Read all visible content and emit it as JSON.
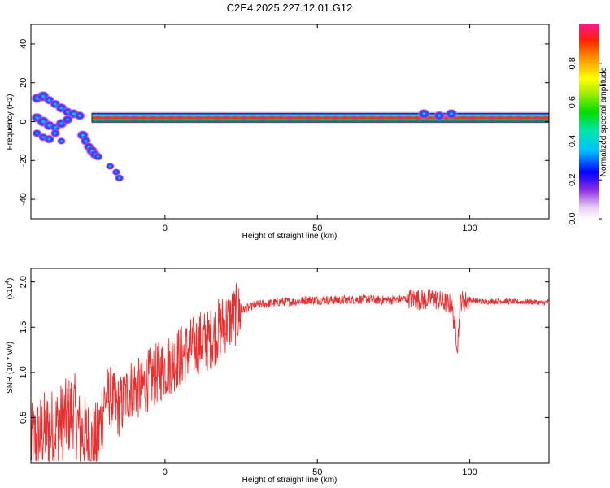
{
  "title": "C2E4.2025.227.12.01.G12",
  "colors": {
    "snr_line": "#e83030",
    "axis": "#000000"
  },
  "colorbar": {
    "label": "Normalized spectral amplitude",
    "ticks": [
      "0.0",
      "0.2",
      "0.4",
      "0.6",
      "0.8"
    ],
    "tick_values": [
      0.0,
      0.2,
      0.4,
      0.6,
      0.8
    ],
    "range": [
      0,
      1
    ]
  },
  "chart_data": [
    {
      "type": "heatmap",
      "id": "spectrogram",
      "xlabel": "Height of straight line (km)",
      "ylabel": "Frequency (Hz)",
      "xlim": [
        -44,
        126
      ],
      "ylim": [
        -50,
        50
      ],
      "xticks": [
        "0",
        "50",
        "100"
      ],
      "xtick_values": [
        0,
        50,
        100
      ],
      "yticks": [
        "40",
        "20",
        "0",
        "-20",
        "-40"
      ],
      "ytick_values": [
        40,
        20,
        0,
        -20,
        -40
      ],
      "band": {
        "frequency": 2,
        "x_start": -24,
        "x_end": 126
      },
      "blobs": [
        {
          "x": -42,
          "y": 12,
          "amp": 0.6
        },
        {
          "x": -40,
          "y": 13,
          "amp": 0.7
        },
        {
          "x": -38,
          "y": 11,
          "amp": 0.5
        },
        {
          "x": -36,
          "y": 9,
          "amp": 0.5
        },
        {
          "x": -34,
          "y": 7,
          "amp": 0.6
        },
        {
          "x": -32,
          "y": 5,
          "amp": 0.5
        },
        {
          "x": -30,
          "y": 4,
          "amp": 0.6
        },
        {
          "x": -28,
          "y": 3,
          "amp": 0.5
        },
        {
          "x": -42,
          "y": 2,
          "amp": 0.6
        },
        {
          "x": -40,
          "y": 0,
          "amp": 0.7
        },
        {
          "x": -38,
          "y": -2,
          "amp": 0.6
        },
        {
          "x": -36,
          "y": -3,
          "amp": 0.5
        },
        {
          "x": -34,
          "y": -1,
          "amp": 0.6
        },
        {
          "x": -32,
          "y": 1,
          "amp": 0.5
        },
        {
          "x": -42,
          "y": -6,
          "amp": 0.4
        },
        {
          "x": -40,
          "y": -8,
          "amp": 0.4
        },
        {
          "x": -38,
          "y": -9,
          "amp": 0.5
        },
        {
          "x": -36,
          "y": -6,
          "amp": 0.4
        },
        {
          "x": -34,
          "y": -10,
          "amp": 0.3
        },
        {
          "x": -27,
          "y": -7,
          "amp": 0.6
        },
        {
          "x": -26,
          "y": -10,
          "amp": 0.5
        },
        {
          "x": -25,
          "y": -13,
          "amp": 0.5
        },
        {
          "x": -24,
          "y": -15,
          "amp": 0.6
        },
        {
          "x": -23,
          "y": -17,
          "amp": 0.5
        },
        {
          "x": -22,
          "y": -18,
          "amp": 0.4
        },
        {
          "x": -18,
          "y": -23,
          "amp": 0.3
        },
        {
          "x": -16,
          "y": -26,
          "amp": 0.3
        },
        {
          "x": -15,
          "y": -29,
          "amp": 0.35
        },
        {
          "x": 85,
          "y": 4,
          "amp": 0.6
        },
        {
          "x": 90,
          "y": 3,
          "amp": 0.55
        },
        {
          "x": 94,
          "y": 4,
          "amp": 0.6
        }
      ]
    },
    {
      "type": "line",
      "id": "snr",
      "xlabel": "Height of straight line (km)",
      "ylabel": "SNR (10 * v/v)",
      "multiplier": "(x10",
      "multiplier_exp": "4",
      "multiplier_close": ")",
      "xlim": [
        -44,
        126
      ],
      "ylim": [
        0,
        2.15
      ],
      "xticks": [
        "0",
        "50",
        "100"
      ],
      "xtick_values": [
        0,
        50,
        100
      ],
      "yticks": [
        "2.0",
        "1.5",
        "1.0",
        "0.5"
      ],
      "ytick_values": [
        2.0,
        1.5,
        1.0,
        0.5
      ],
      "series": [
        {
          "x": [
            -44,
            -40,
            -36,
            -32,
            -30,
            -28,
            -26,
            -24,
            -22,
            -20,
            -18,
            -16,
            -14,
            -12,
            -10,
            -8,
            -6,
            -4,
            -2,
            0,
            2,
            4,
            6,
            8,
            10,
            12,
            14,
            16,
            18,
            20,
            22,
            24,
            26,
            28,
            30,
            34,
            38,
            42,
            46,
            50,
            55,
            60,
            65,
            70,
            75,
            80,
            85,
            88,
            91,
            94,
            96,
            97,
            98,
            100,
            105,
            110,
            115,
            120,
            124,
            126
          ],
          "y": [
            0.2,
            0.35,
            0.4,
            0.5,
            0.6,
            0.35,
            0.3,
            0.2,
            0.25,
            0.7,
            0.75,
            0.6,
            0.65,
            0.8,
            0.85,
            0.8,
            0.9,
            0.95,
            1.0,
            1.05,
            1.1,
            1.15,
            1.2,
            1.25,
            1.3,
            1.35,
            1.35,
            1.4,
            1.5,
            1.55,
            1.6,
            1.65,
            1.7,
            1.72,
            1.75,
            1.76,
            1.78,
            1.78,
            1.8,
            1.8,
            1.8,
            1.8,
            1.81,
            1.8,
            1.8,
            1.82,
            1.8,
            1.82,
            1.78,
            1.75,
            1.3,
            1.8,
            1.78,
            1.8,
            1.78,
            1.79,
            1.78,
            1.78,
            1.77,
            1.78
          ]
        }
      ]
    }
  ]
}
